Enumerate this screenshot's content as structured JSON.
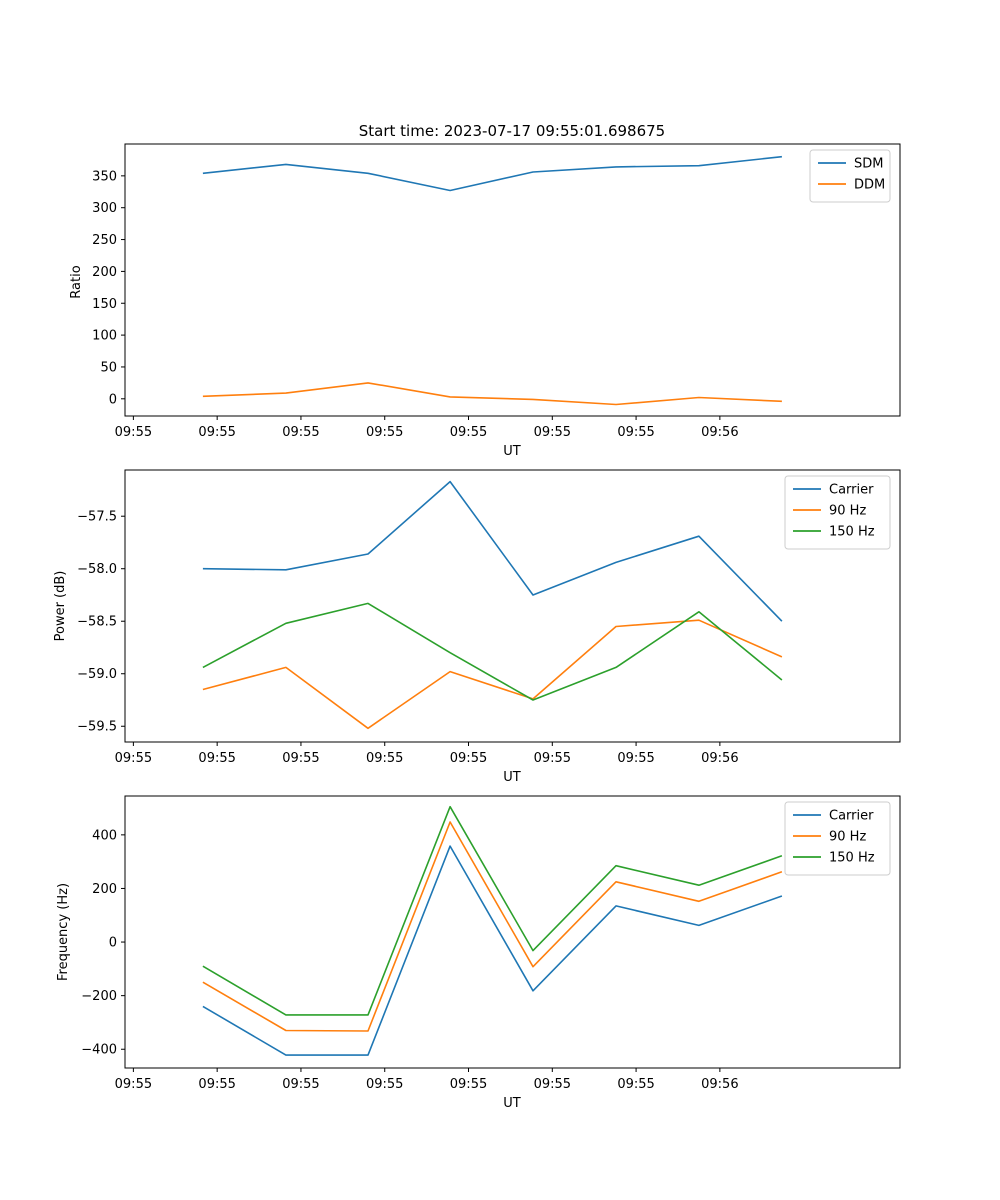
{
  "figure_title": "Start time: 2023-07-17 09:55:01.698675",
  "colors": {
    "blue": "#1f77b4",
    "orange": "#ff7f0e",
    "green": "#2ca02c"
  },
  "chart_data": [
    {
      "type": "line",
      "xlabel": "UT",
      "ylabel": "Ratio",
      "x_tick_labels": [
        "09:55",
        "09:55",
        "09:55",
        "09:55",
        "09:55",
        "09:55",
        "09:55",
        "09:56"
      ],
      "xlim": [
        0,
        9.25
      ],
      "x": [
        0.93,
        1.92,
        2.9,
        3.88,
        4.87,
        5.86,
        6.85,
        7.84
      ],
      "ylim": [
        -27,
        400
      ],
      "y_ticks": [
        0,
        50,
        100,
        150,
        200,
        250,
        300,
        350
      ],
      "y_tick_labels": [
        "0",
        "50",
        "100",
        "150",
        "200",
        "250",
        "300",
        "350"
      ],
      "legend_position": "top-right",
      "series": [
        {
          "name": "SDM",
          "color": "#1f77b4",
          "values": [
            354,
            368,
            354,
            327,
            356,
            364,
            366,
            380
          ]
        },
        {
          "name": "DDM",
          "color": "#ff7f0e",
          "values": [
            4,
            9,
            25,
            3,
            -1,
            -9,
            2,
            -4
          ]
        }
      ]
    },
    {
      "type": "line",
      "xlabel": "UT",
      "ylabel": "Power (dB)",
      "x_tick_labels": [
        "09:55",
        "09:55",
        "09:55",
        "09:55",
        "09:55",
        "09:55",
        "09:55",
        "09:56"
      ],
      "xlim": [
        0,
        9.25
      ],
      "x": [
        0.93,
        1.92,
        2.9,
        3.88,
        4.87,
        5.86,
        6.85,
        7.84
      ],
      "ylim": [
        -59.65,
        -57.06
      ],
      "y_ticks": [
        -59.5,
        -59.0,
        -58.5,
        -58.0,
        -57.5
      ],
      "y_tick_labels": [
        "−59.5",
        "−59.0",
        "−58.5",
        "−58.0",
        "−57.5"
      ],
      "legend_position": "top-right",
      "series": [
        {
          "name": "Carrier",
          "color": "#1f77b4",
          "values": [
            -58.0,
            -58.01,
            -57.86,
            -57.17,
            -58.25,
            -57.94,
            -57.69,
            -58.5
          ]
        },
        {
          "name": "90 Hz",
          "color": "#ff7f0e",
          "values": [
            -59.15,
            -58.94,
            -59.52,
            -58.98,
            -59.24,
            -58.55,
            -58.49,
            -58.84
          ]
        },
        {
          "name": "150 Hz",
          "color": "#2ca02c",
          "values": [
            -58.94,
            -58.52,
            -58.33,
            -58.8,
            -59.25,
            -58.94,
            -58.41,
            -59.06
          ]
        }
      ]
    },
    {
      "type": "line",
      "xlabel": "UT",
      "ylabel": "Frequency (Hz)",
      "x_tick_labels": [
        "09:55",
        "09:55",
        "09:55",
        "09:55",
        "09:55",
        "09:55",
        "09:55",
        "09:56"
      ],
      "xlim": [
        0,
        9.25
      ],
      "x": [
        0.93,
        1.92,
        2.9,
        3.88,
        4.87,
        5.86,
        6.85,
        7.84
      ],
      "ylim": [
        -470,
        545
      ],
      "y_ticks": [
        -400,
        -200,
        0,
        200,
        400
      ],
      "y_tick_labels": [
        "−400",
        "−200",
        "0",
        "200",
        "400"
      ],
      "legend_position": "top-right",
      "series": [
        {
          "name": "Carrier",
          "color": "#1f77b4",
          "values": [
            -240,
            -422,
            -422,
            358,
            -182,
            135,
            62,
            172
          ]
        },
        {
          "name": "90 Hz",
          "color": "#ff7f0e",
          "values": [
            -150,
            -330,
            -332,
            448,
            -92,
            225,
            152,
            262
          ]
        },
        {
          "name": "150 Hz",
          "color": "#2ca02c",
          "values": [
            -90,
            -272,
            -272,
            505,
            -32,
            285,
            212,
            322
          ]
        }
      ]
    }
  ]
}
